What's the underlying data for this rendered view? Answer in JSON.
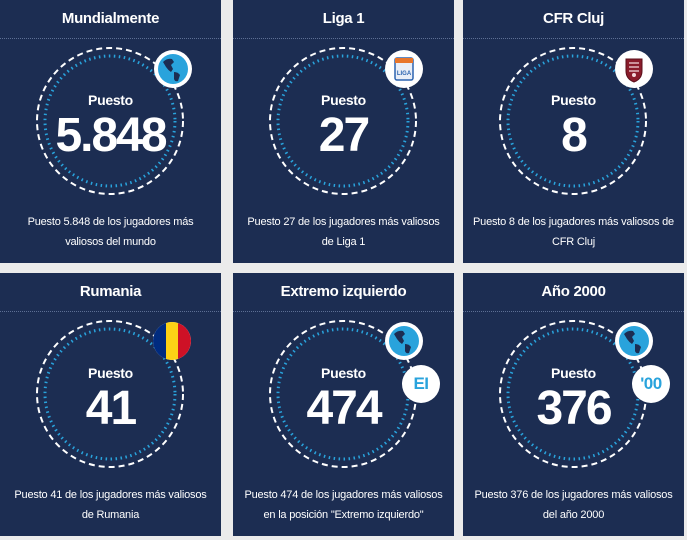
{
  "cards": [
    {
      "title": "Mundialmente",
      "label": "Puesto",
      "rank": "5.848",
      "icon": "globe-icon",
      "description": "Puesto 5.848 de los jugadores más valiosos del mundo"
    },
    {
      "title": "Liga 1",
      "label": "Puesto",
      "rank": "27",
      "icon": "liga-1-logo-icon",
      "badge_text": "LIGA",
      "description": "Puesto 27 de los jugadores más valiosos de Liga 1"
    },
    {
      "title": "CFR Cluj",
      "label": "Puesto",
      "rank": "8",
      "icon": "cfr-cluj-crest-icon",
      "description": "Puesto 8 de los jugadores más valiosos de CFR Cluj"
    },
    {
      "title": "Rumania",
      "label": "Puesto",
      "rank": "41",
      "icon": "romania-flag-icon",
      "description": "Puesto 41 de los jugadores más valiosos de Rumania"
    },
    {
      "title": "Extremo izquierdo",
      "label": "Puesto",
      "rank": "474",
      "icon": "globe-icon",
      "pill": "EI",
      "description": "Puesto 474 de los jugadores más valiosos en la posición \"Extremo izquierdo\""
    },
    {
      "title": "Año 2000",
      "label": "Puesto",
      "rank": "376",
      "icon": "globe-icon",
      "pill": "'00",
      "description": "Puesto 376 de los jugadores más valiosos del año 2000"
    }
  ],
  "colors": {
    "card_bg": "#1c2d52",
    "page_bg": "#ebebeb",
    "ring_blue": "#29a3dc",
    "ring_white": "#ffffff",
    "text": "#ffffff",
    "romania_blue": "#002b7f",
    "romania_yellow": "#fcd116",
    "romania_red": "#ce1126",
    "cfr_maroon": "#8a1c2b"
  }
}
